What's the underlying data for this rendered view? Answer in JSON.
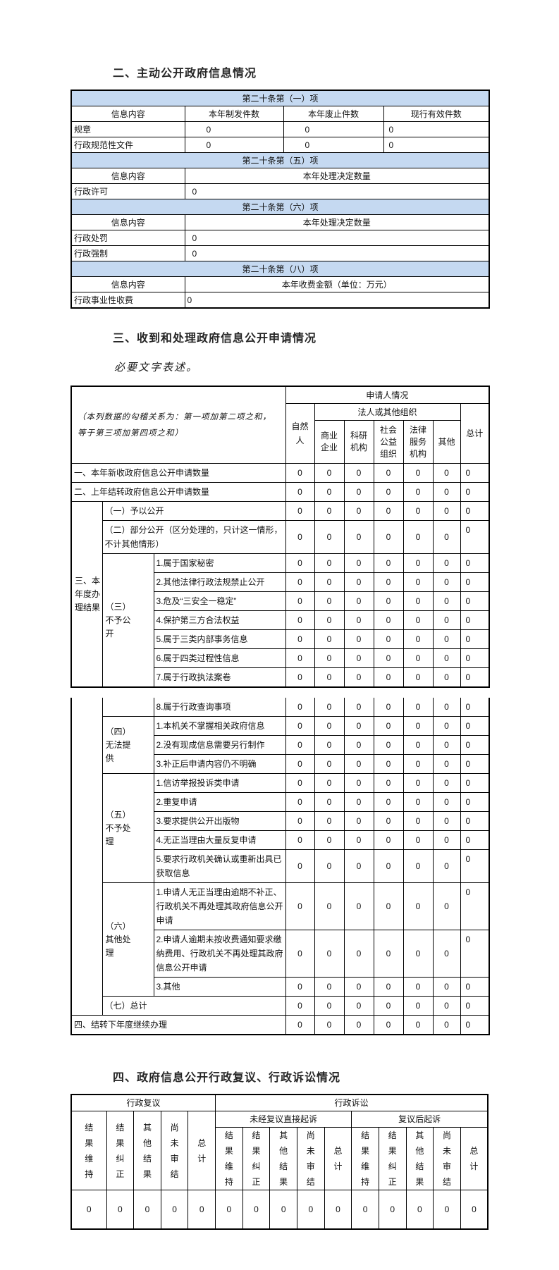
{
  "page": {
    "s2_heading": "二、主动公开政府信息情况",
    "s3_heading": "三、收到和处理政府信息公开申请情况",
    "s3_note": "必要文字表述。",
    "s4_heading": "四、政府信息公开行政复议、行政诉讼情况"
  },
  "t1": {
    "sec1": {
      "title": "第二十条第（一）项",
      "headers": [
        "信息内容",
        "本年制发件数",
        "本年废止件数",
        "现行有效件数"
      ],
      "rows": [
        {
          "label": "规章",
          "v": [
            "0",
            "0",
            "0"
          ]
        },
        {
          "label": "行政规范性文件",
          "v": [
            "0",
            "0",
            "0"
          ]
        }
      ]
    },
    "sec5": {
      "title": "第二十条第（五）项",
      "header_label": "信息内容",
      "header_value": "本年处理决定数量",
      "rows": [
        {
          "label": "行政许可",
          "v": [
            "0"
          ]
        }
      ]
    },
    "sec6": {
      "title": "第二十条第（六）项",
      "header_label": "信息内容",
      "header_value": "本年处理决定数量",
      "rows": [
        {
          "label": "行政处罚",
          "v": [
            "0"
          ]
        },
        {
          "label": "行政强制",
          "v": [
            "0"
          ]
        }
      ]
    },
    "sec8": {
      "title": "第二十条第（八）项",
      "header_label": "信息内容",
      "header_value": "本年收费金额（单位：万元）",
      "rows": [
        {
          "label": "行政事业性收费",
          "v": [
            "0"
          ]
        }
      ]
    }
  },
  "t3": {
    "corner_note": "（本列数据的勾稽关系为：第一项加第二项之和，等于第三项加第四项之和）",
    "applicant": "申请人情况",
    "legal_group": "法人或其他组织",
    "natural": "自然人",
    "legal_cols": [
      "商业企业",
      "科研机构",
      "社会公益组织",
      "法律服务机构",
      "其他"
    ],
    "total": "总计",
    "row_new": {
      "label": "一、本年新收政府信息公开申请数量",
      "v": [
        "0",
        "0",
        "0",
        "0",
        "0",
        "0",
        "0"
      ]
    },
    "row_carry": {
      "label": "二、上年结转政府信息公开申请数量",
      "v": [
        "0",
        "0",
        "0",
        "0",
        "0",
        "0",
        "0"
      ]
    },
    "group_result": "三、本年度办理结果",
    "r1": {
      "label": "（一）予以公开",
      "v": [
        "0",
        "0",
        "0",
        "0",
        "0",
        "0",
        "0"
      ]
    },
    "r2": {
      "label": "（二）部分公开（区分处理的，只计这一情形，不计其他情形）",
      "v": [
        "0",
        "0",
        "0",
        "0",
        "0",
        "0",
        "0"
      ]
    },
    "group_refuse": "（三）不予公开",
    "refuse": [
      {
        "label": "1.属于国家秘密",
        "v": [
          "0",
          "0",
          "0",
          "0",
          "0",
          "0",
          "0"
        ]
      },
      {
        "label": "2.其他法律行政法规禁止公开",
        "v": [
          "0",
          "0",
          "0",
          "0",
          "0",
          "0",
          "0"
        ]
      },
      {
        "label": "3.危及“三安全一稳定”",
        "v": [
          "0",
          "0",
          "0",
          "0",
          "0",
          "0",
          "0"
        ]
      },
      {
        "label": "4.保护第三方合法权益",
        "v": [
          "0",
          "0",
          "0",
          "0",
          "0",
          "0",
          "0"
        ]
      },
      {
        "label": "5.属于三类内部事务信息",
        "v": [
          "0",
          "0",
          "0",
          "0",
          "0",
          "0",
          "0"
        ]
      },
      {
        "label": "6.属于四类过程性信息",
        "v": [
          "0",
          "0",
          "0",
          "0",
          "0",
          "0",
          "0"
        ]
      },
      {
        "label": "7.属于行政执法案卷",
        "v": [
          "0",
          "0",
          "0",
          "0",
          "0",
          "0",
          "0"
        ]
      }
    ],
    "refuse8": {
      "label": "8.属于行政查询事项",
      "v": [
        "0",
        "0",
        "0",
        "0",
        "0",
        "0",
        "0"
      ]
    },
    "group_unable": "（四）无法提供",
    "unable": [
      {
        "label": "1.本机关不掌握相关政府信息",
        "v": [
          "0",
          "0",
          "0",
          "0",
          "0",
          "0",
          "0"
        ]
      },
      {
        "label": "2.没有现成信息需要另行制作",
        "v": [
          "0",
          "0",
          "0",
          "0",
          "0",
          "0",
          "0"
        ]
      },
      {
        "label": "3.补正后申请内容仍不明确",
        "v": [
          "0",
          "0",
          "0",
          "0",
          "0",
          "0",
          "0"
        ]
      }
    ],
    "group_nohandle": "（五）不予处理",
    "nohandle": [
      {
        "label": "1.信访举报投诉类申请",
        "v": [
          "0",
          "0",
          "0",
          "0",
          "0",
          "0",
          "0"
        ]
      },
      {
        "label": "2.重复申请",
        "v": [
          "0",
          "0",
          "0",
          "0",
          "0",
          "0",
          "0"
        ]
      },
      {
        "label": "3.要求提供公开出版物",
        "v": [
          "0",
          "0",
          "0",
          "0",
          "0",
          "0",
          "0"
        ]
      },
      {
        "label": "4.无正当理由大量反复申请",
        "v": [
          "0",
          "0",
          "0",
          "0",
          "0",
          "0",
          "0"
        ]
      },
      {
        "label": "5.要求行政机关确认或重新出具已获取信息",
        "v": [
          "0",
          "0",
          "0",
          "0",
          "0",
          "0",
          "0"
        ]
      }
    ],
    "group_other": "（六）其他处理",
    "other": [
      {
        "label": "1.申请人无正当理由逾期不补正、行政机关不再处理其政府信息公开申请",
        "v": [
          "0",
          "0",
          "0",
          "0",
          "0",
          "0",
          "0"
        ]
      },
      {
        "label": "2.申请人逾期未按收费通知要求缴纳费用、行政机关不再处理其政府信息公开申请",
        "v": [
          "0",
          "0",
          "0",
          "0",
          "0",
          "0",
          "0"
        ]
      },
      {
        "label": "3.其他",
        "v": [
          "0",
          "0",
          "0",
          "0",
          "0",
          "0",
          "0"
        ]
      }
    ],
    "row_total": {
      "label": "（七）总计",
      "v": [
        "0",
        "0",
        "0",
        "0",
        "0",
        "0",
        "0"
      ]
    },
    "row_next": {
      "label": "四、结转下年度继续办理",
      "v": [
        "0",
        "0",
        "0",
        "0",
        "0",
        "0",
        "0"
      ]
    }
  },
  "t4": {
    "review": "行政复议",
    "lawsuit": "行政诉讼",
    "direct": "未经复议直接起诉",
    "after_review": "复议后起诉",
    "result_cols": [
      "结果维持",
      "结果纠正",
      "其他结果",
      "尚未审结",
      "总计"
    ],
    "values": [
      "0",
      "0",
      "0",
      "0",
      "0",
      "0",
      "0",
      "0",
      "0",
      "0",
      "0",
      "0",
      "0",
      "0",
      "0"
    ]
  }
}
